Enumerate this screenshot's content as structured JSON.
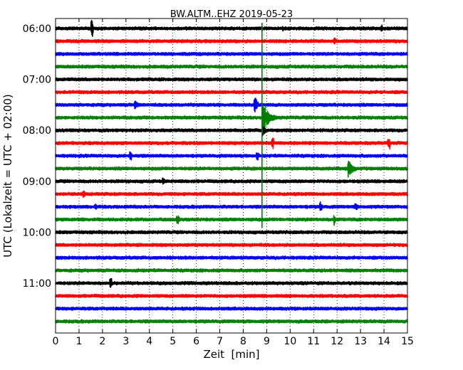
{
  "chart_data": {
    "type": "line",
    "title": "BW.ALTM..EHZ 2019-05-23",
    "xlabel": "Zeit  [min]",
    "ylabel": "UTC (Lokalzeit = UTC + 02:00)",
    "xlim": [
      0,
      15
    ],
    "xticks": [
      "0",
      "1",
      "2",
      "3",
      "4",
      "5",
      "6",
      "7",
      "8",
      "9",
      "10",
      "11",
      "12",
      "13",
      "14",
      "15"
    ],
    "y_tick_labels": [
      "06:00",
      "07:00",
      "08:00",
      "09:00",
      "10:00",
      "11:00"
    ],
    "y_tick_trace_index": [
      0,
      4,
      8,
      12,
      16,
      20
    ],
    "trace_interval_minutes": 15,
    "grid": "dotted vertical lines at each minute",
    "colors": [
      "#000000",
      "#ff0000",
      "#0000ff",
      "#008000"
    ],
    "traces": [
      {
        "start": "06:00",
        "color": "#000000",
        "events": [
          {
            "t": 1.55,
            "amp": 1.3,
            "dur": 0.05
          },
          {
            "t": 9.7,
            "amp": 0.5,
            "dur": 0.1
          },
          {
            "t": 13.9,
            "amp": 0.6,
            "dur": 0.05
          }
        ]
      },
      {
        "start": "06:15",
        "color": "#ff0000",
        "events": [
          {
            "t": 11.9,
            "amp": 0.6,
            "dur": 0.2
          }
        ]
      },
      {
        "start": "06:30",
        "color": "#0000ff",
        "events": []
      },
      {
        "start": "06:45",
        "color": "#008000",
        "events": []
      },
      {
        "start": "07:00",
        "color": "#000000",
        "events": []
      },
      {
        "start": "07:15",
        "color": "#ff0000",
        "events": []
      },
      {
        "start": "07:30",
        "color": "#0000ff",
        "events": [
          {
            "t": 3.4,
            "amp": 0.8,
            "dur": 0.4
          },
          {
            "t": 8.5,
            "amp": 1.6,
            "dur": 0.3
          }
        ]
      },
      {
        "start": "07:45",
        "color": "#008000",
        "events": [
          {
            "t": 8.85,
            "amp": 2.3,
            "dur": 0.8
          }
        ]
      },
      {
        "start": "08:00",
        "color": "#000000",
        "events": [
          {
            "t": 8.85,
            "amp": 0.9,
            "dur": 0.3
          }
        ]
      },
      {
        "start": "08:15",
        "color": "#ff0000",
        "events": [
          {
            "t": 9.25,
            "amp": 1.0,
            "dur": 0.05
          },
          {
            "t": 14.2,
            "amp": 0.9,
            "dur": 0.05
          }
        ]
      },
      {
        "start": "08:30",
        "color": "#0000ff",
        "events": [
          {
            "t": 3.2,
            "amp": 0.9,
            "dur": 0.05
          },
          {
            "t": 8.6,
            "amp": 0.7,
            "dur": 0.05
          }
        ]
      },
      {
        "start": "08:45",
        "color": "#008000",
        "events": [
          {
            "t": 12.5,
            "amp": 1.4,
            "dur": 0.6
          }
        ]
      },
      {
        "start": "09:00",
        "color": "#000000",
        "events": [
          {
            "t": 4.6,
            "amp": 0.6,
            "dur": 0.05
          }
        ]
      },
      {
        "start": "09:15",
        "color": "#ff0000",
        "events": [
          {
            "t": 1.2,
            "amp": 0.5,
            "dur": 0.05
          }
        ]
      },
      {
        "start": "09:30",
        "color": "#0000ff",
        "events": [
          {
            "t": 1.7,
            "amp": 0.4,
            "dur": 0.05
          },
          {
            "t": 11.3,
            "amp": 0.8,
            "dur": 0.05
          },
          {
            "t": 12.8,
            "amp": 0.5,
            "dur": 0.05
          }
        ]
      },
      {
        "start": "09:45",
        "color": "#008000",
        "events": [
          {
            "t": 5.2,
            "amp": 0.8,
            "dur": 0.4
          },
          {
            "t": 11.9,
            "amp": 1.0,
            "dur": 0.1
          }
        ]
      },
      {
        "start": "10:00",
        "color": "#000000",
        "events": []
      },
      {
        "start": "10:15",
        "color": "#ff0000",
        "events": []
      },
      {
        "start": "10:30",
        "color": "#0000ff",
        "events": []
      },
      {
        "start": "10:45",
        "color": "#008000",
        "events": []
      },
      {
        "start": "11:00",
        "color": "#000000",
        "events": [
          {
            "t": 2.35,
            "amp": 0.8,
            "dur": 0.05
          }
        ]
      },
      {
        "start": "11:15",
        "color": "#ff0000",
        "events": []
      },
      {
        "start": "11:30",
        "color": "#0000ff",
        "events": []
      },
      {
        "start": "11:45",
        "color": "#008000",
        "events": []
      }
    ],
    "vertical_marker": {
      "x": 8.8,
      "color": "#008000",
      "from_trace": 0,
      "to_trace": 15
    }
  }
}
